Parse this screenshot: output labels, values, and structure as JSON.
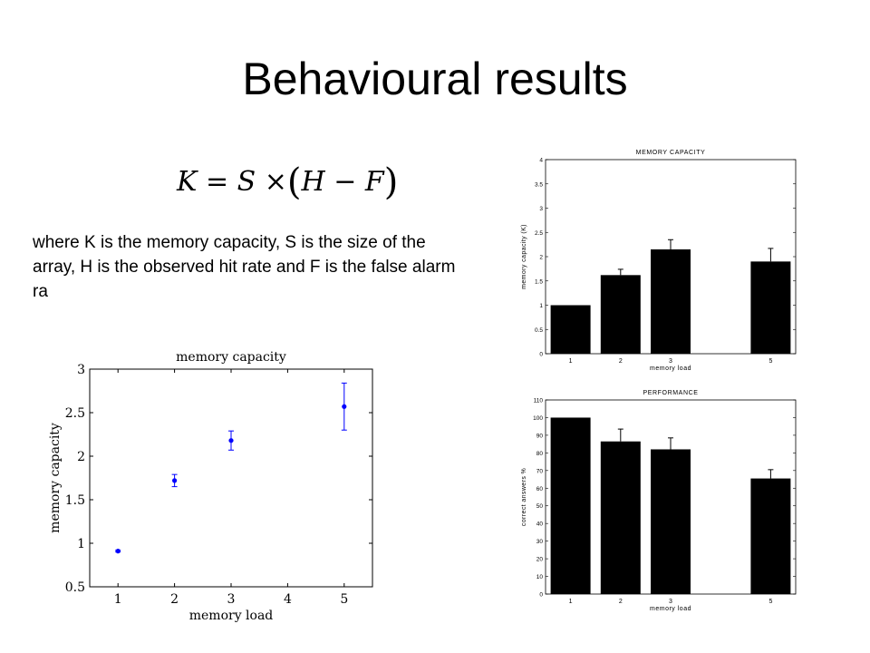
{
  "slide": {
    "title": "Behavioural results",
    "formula": {
      "lhs": "K",
      "s": "S",
      "h": "H",
      "f": "F"
    },
    "description": "where K is the memory capacity, S is the size of the array, H is the observed hit rate and F is the false alarm ra"
  },
  "chart_data": [
    {
      "id": "scatter",
      "type": "scatter",
      "title": "memory capacity",
      "xlabel": "memory load",
      "ylabel": "memory capacity",
      "xlim": [
        0.5,
        5.5
      ],
      "ylim": [
        0.5,
        3
      ],
      "xticks": [
        1,
        2,
        3,
        4,
        5
      ],
      "yticks": [
        0.5,
        1,
        1.5,
        2,
        2.5,
        3
      ],
      "ytick_labels": [
        "0.5",
        "1",
        "1.5",
        "2",
        "2.5",
        "3"
      ],
      "x": [
        1,
        2,
        3,
        5
      ],
      "y": [
        0.91,
        1.72,
        2.18,
        2.57
      ],
      "err": [
        0.01,
        0.07,
        0.11,
        0.27
      ],
      "color": "#0000ff"
    },
    {
      "id": "bar-capacity",
      "type": "bar",
      "title": "MEMORY CAPACITY",
      "xlabel": "memory load",
      "ylabel": "memory capacity (K)",
      "xlim": [
        0.5,
        5.5
      ],
      "ylim": [
        0,
        4
      ],
      "xticks": [
        1,
        2,
        3,
        5
      ],
      "yticks": [
        0,
        0.5,
        1,
        1.5,
        2,
        2.5,
        3,
        3.5,
        4
      ],
      "ytick_labels": [
        "0",
        "0.5",
        "1",
        "1.5",
        "2",
        "2.5",
        "3",
        "3.5",
        "4"
      ],
      "categories": [
        1,
        2,
        3,
        5
      ],
      "values": [
        1.0,
        1.62,
        2.15,
        1.9
      ],
      "err": [
        0,
        0.12,
        0.2,
        0.27
      ],
      "color": "#000000"
    },
    {
      "id": "bar-performance",
      "type": "bar",
      "title": "PERFORMANCE",
      "xlabel": "memory load",
      "ylabel": "correct answers %",
      "xlim": [
        0.5,
        5.5
      ],
      "ylim": [
        0,
        110
      ],
      "xticks": [
        1,
        2,
        3,
        5
      ],
      "yticks": [
        0,
        10,
        20,
        30,
        40,
        50,
        60,
        70,
        80,
        90,
        100,
        110
      ],
      "ytick_labels": [
        "0",
        "10",
        "20",
        "30",
        "40",
        "50",
        "60",
        "70",
        "80",
        "90",
        "100",
        "110"
      ],
      "categories": [
        1,
        2,
        3,
        5
      ],
      "values": [
        100,
        86.5,
        82,
        65.5
      ],
      "err": [
        0,
        7,
        6.5,
        5
      ],
      "color": "#000000"
    }
  ]
}
